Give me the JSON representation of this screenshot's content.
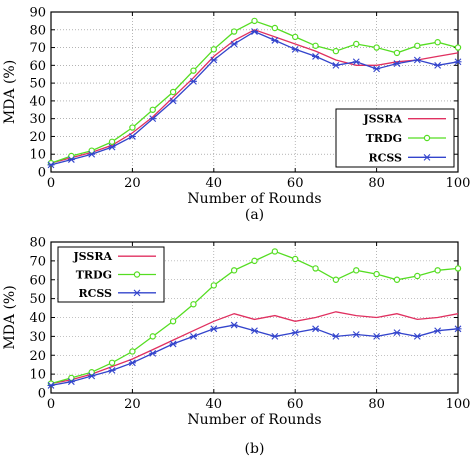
{
  "chart_data": [
    {
      "type": "line",
      "caption": "(a)",
      "xlabel": "Number of Rounds",
      "ylabel": "MDA (%)",
      "xlim": [
        0,
        100
      ],
      "ylim": [
        0,
        90
      ],
      "xticks": [
        0,
        20,
        40,
        60,
        80,
        100
      ],
      "yticks": [
        0,
        10,
        20,
        30,
        40,
        50,
        60,
        70,
        80,
        90
      ],
      "grid": true,
      "legend_position": "bottom-right",
      "x": [
        0,
        5,
        10,
        15,
        20,
        25,
        30,
        35,
        40,
        45,
        50,
        55,
        60,
        65,
        70,
        75,
        80,
        85,
        90,
        95,
        100
      ],
      "series": [
        {
          "name": "JSSRA",
          "color": "#e03060",
          "marker": "none",
          "values": [
            5,
            8,
            11,
            15,
            22,
            31,
            42,
            53,
            65,
            74,
            80,
            76,
            72,
            68,
            63,
            60,
            60,
            62,
            63,
            65,
            67
          ]
        },
        {
          "name": "TRDG",
          "color": "#55dd22",
          "marker": "circle",
          "values": [
            5,
            9,
            12,
            17,
            25,
            35,
            45,
            57,
            69,
            79,
            85,
            81,
            76,
            71,
            68,
            72,
            70,
            67,
            71,
            73,
            70
          ]
        },
        {
          "name": "RCSS",
          "color": "#3344cc",
          "marker": "star",
          "values": [
            4,
            7,
            10,
            14,
            20,
            30,
            40,
            51,
            63,
            72,
            79,
            74,
            69,
            65,
            60,
            62,
            58,
            61,
            63,
            60,
            62
          ]
        }
      ]
    },
    {
      "type": "line",
      "caption": "(b)",
      "xlabel": "Number of Rounds",
      "ylabel": "MDA (%)",
      "xlim": [
        0,
        100
      ],
      "ylim": [
        0,
        80
      ],
      "xticks": [
        0,
        20,
        40,
        60,
        80,
        100
      ],
      "yticks": [
        0,
        10,
        20,
        30,
        40,
        50,
        60,
        70,
        80
      ],
      "grid": true,
      "legend_position": "top-left",
      "x": [
        0,
        5,
        10,
        15,
        20,
        25,
        30,
        35,
        40,
        45,
        50,
        55,
        60,
        65,
        70,
        75,
        80,
        85,
        90,
        95,
        100
      ],
      "series": [
        {
          "name": "JSSRA",
          "color": "#e03060",
          "marker": "none",
          "values": [
            5,
            7,
            10,
            14,
            18,
            23,
            28,
            33,
            38,
            42,
            39,
            41,
            38,
            40,
            43,
            41,
            40,
            42,
            39,
            40,
            42
          ]
        },
        {
          "name": "TRDG",
          "color": "#55dd22",
          "marker": "circle",
          "values": [
            5,
            8,
            11,
            16,
            22,
            30,
            38,
            47,
            57,
            65,
            70,
            75,
            71,
            66,
            60,
            65,
            63,
            60,
            62,
            65,
            66
          ]
        },
        {
          "name": "RCSS",
          "color": "#3344cc",
          "marker": "star",
          "values": [
            4,
            6,
            9,
            12,
            16,
            21,
            26,
            30,
            34,
            36,
            33,
            30,
            32,
            34,
            30,
            31,
            30,
            32,
            30,
            33,
            34
          ]
        }
      ]
    }
  ]
}
